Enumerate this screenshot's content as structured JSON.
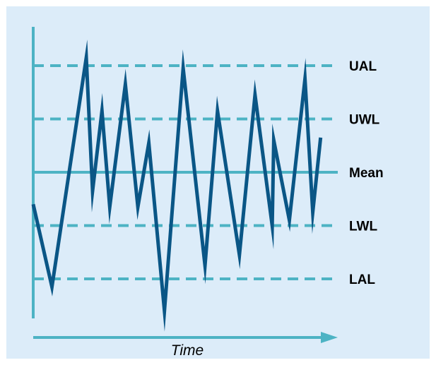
{
  "colors": {
    "background": "#dcecf9",
    "accent_line": "#4db3c4",
    "series_line": "#0a5686"
  },
  "chart_data": {
    "type": "line",
    "title": "",
    "xlabel": "Time",
    "ylabel": "",
    "grid": false,
    "reference_lines": [
      {
        "label": "UAL",
        "value": 2.0,
        "style": "dashed"
      },
      {
        "label": "UWL",
        "value": 1.0,
        "style": "dashed"
      },
      {
        "label": "Mean",
        "value": 0.0,
        "style": "solid"
      },
      {
        "label": "LWL",
        "value": -1.0,
        "style": "dashed"
      },
      {
        "label": "LAL",
        "value": -2.0,
        "style": "dashed"
      }
    ],
    "ylim": [
      -2.73,
      2.73
    ],
    "xlim": [
      0,
      19.5
    ],
    "series": [
      {
        "values": [
          [
            0.0,
            -0.6
          ],
          [
            1.2,
            -2.15
          ],
          [
            3.4,
            2.15
          ],
          [
            3.8,
            -0.35
          ],
          [
            4.4,
            1.15
          ],
          [
            4.9,
            -0.65
          ],
          [
            5.9,
            1.65
          ],
          [
            6.7,
            -0.65
          ],
          [
            7.4,
            0.55
          ],
          [
            8.4,
            -2.6
          ],
          [
            9.6,
            1.95
          ],
          [
            11.0,
            -1.75
          ],
          [
            11.8,
            1.15
          ],
          [
            13.2,
            -1.55
          ],
          [
            14.2,
            1.45
          ],
          [
            15.3,
            -1.0
          ],
          [
            15.4,
            0.6
          ],
          [
            16.4,
            -0.9
          ],
          [
            17.4,
            1.75
          ],
          [
            17.9,
            -0.75
          ],
          [
            18.4,
            0.65
          ]
        ]
      }
    ]
  }
}
